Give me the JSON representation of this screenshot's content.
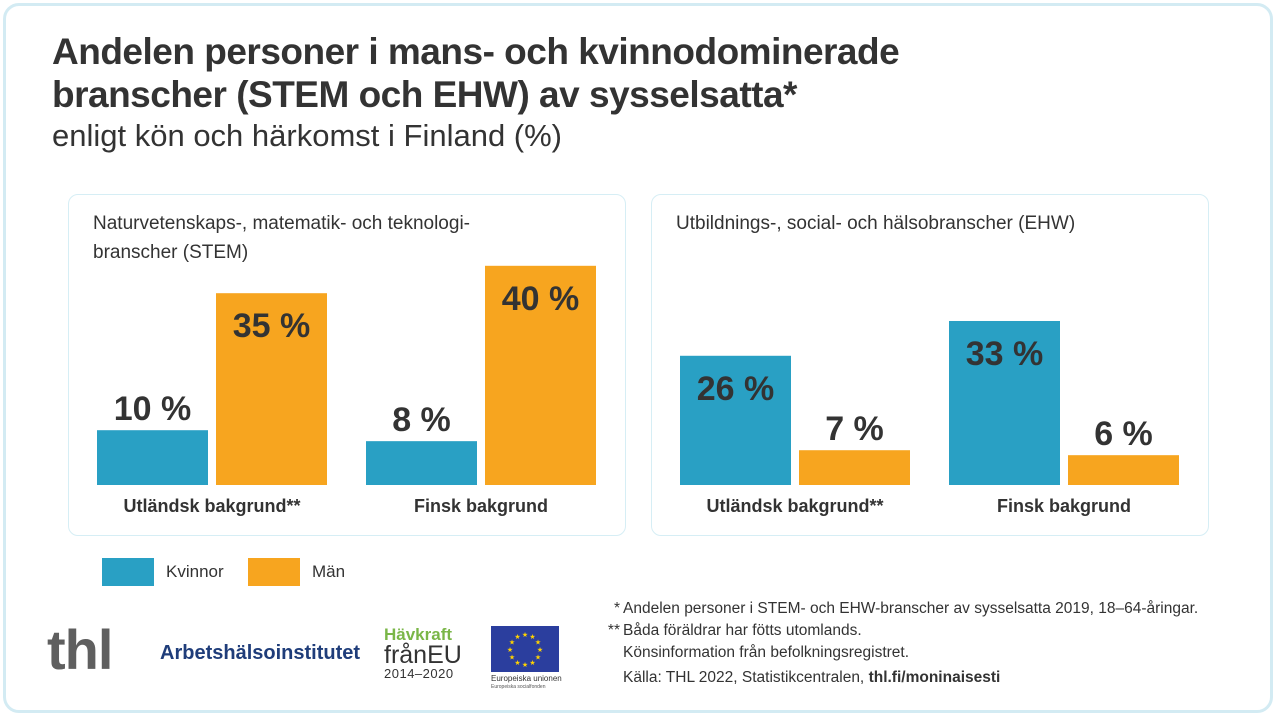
{
  "header": {
    "title_line1": "Andelen personer i mans- och kvinnodominerade",
    "title_line2": "branscher (STEM och EHW) av sysselsatta*",
    "subtitle": "enligt kön och härkomst i Finland (%)"
  },
  "colors": {
    "kvinnor": "#29a0c4",
    "man": "#f7a51f",
    "text": "#333333",
    "frame": "#d3ebf3"
  },
  "chart_data": [
    {
      "type": "bar",
      "title": "Naturvetenskaps-, matematik- och teknologi-branscher (STEM)",
      "title_line1": "Naturvetenskaps-, matematik- och teknologi-",
      "title_line2": "branscher (STEM)",
      "categories": [
        "Utländsk bakgrund**",
        "Finsk bakgrund"
      ],
      "series": [
        {
          "name": "Kvinnor",
          "values": [
            10,
            8
          ],
          "labels": [
            "10 %",
            "8 %"
          ]
        },
        {
          "name": "Män",
          "values": [
            35,
            40
          ],
          "labels": [
            "35 %",
            "40 %"
          ]
        }
      ],
      "ylim": [
        0,
        40
      ],
      "xlabel": "",
      "ylabel": "",
      "grid": false
    },
    {
      "type": "bar",
      "title": "Utbildnings-, social- och hälsobranscher (EHW)",
      "title_line1": "Utbildnings-, social- och hälsobranscher (EHW)",
      "title_line2": "",
      "categories": [
        "Utländsk bakgrund**",
        "Finsk bakgrund"
      ],
      "series": [
        {
          "name": "Kvinnor",
          "values": [
            26,
            33
          ],
          "labels": [
            "26 %",
            "33 %"
          ]
        },
        {
          "name": "Män",
          "values": [
            7,
            6
          ],
          "labels": [
            "7 %",
            "6 %"
          ]
        }
      ],
      "ylim": [
        0,
        40
      ],
      "xlabel": "",
      "ylabel": "",
      "grid": false
    }
  ],
  "legend": {
    "placement": "bottom-left",
    "items": [
      {
        "label": "Kvinnor"
      },
      {
        "label": "Män"
      }
    ]
  },
  "footnotes": [
    {
      "mark": "*",
      "text": "Andelen personer i STEM- och EHW-branscher av sysselsatta 2019, 18–64-åringar."
    },
    {
      "mark": "**",
      "text": "Båda föräldrar har fötts utomlands."
    },
    {
      "mark": "",
      "text": "Könsinformation från befolkningsregistret."
    }
  ],
  "source": {
    "prefix": "Källa: THL 2022, Statistikcentralen, ",
    "link": "thl.fi/moninaisesti"
  },
  "logos": {
    "thl": "thl",
    "ttl": "Arbetshälsoinstitutet",
    "havkraft_line1": "Hävkraft",
    "havkraft_line2": "frånEU",
    "havkraft_line3": "2014–2020",
    "eu_line1": "Europeiska unionen",
    "eu_line2": "Europeiska socialfonden"
  }
}
